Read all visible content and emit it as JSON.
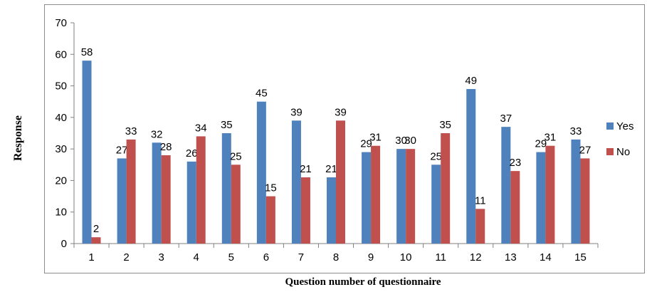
{
  "chart_data": {
    "type": "bar",
    "title": "",
    "xlabel": "Question number of questionnaire",
    "ylabel": "Response",
    "ylim": [
      0,
      70
    ],
    "yticks": [
      0,
      10,
      20,
      30,
      40,
      50,
      60,
      70
    ],
    "grid": false,
    "legend_position": "right",
    "categories": [
      "1",
      "2",
      "3",
      "4",
      "5",
      "6",
      "7",
      "8",
      "9",
      "10",
      "11",
      "12",
      "13",
      "14",
      "15"
    ],
    "series": [
      {
        "name": "Yes",
        "color": "#4F81BD",
        "values": [
          58,
          27,
          32,
          26,
          35,
          45,
          39,
          21,
          29,
          30,
          25,
          49,
          37,
          29,
          33
        ]
      },
      {
        "name": "No",
        "color": "#C0504D",
        "values": [
          2,
          33,
          28,
          34,
          25,
          15,
          21,
          39,
          31,
          30,
          35,
          11,
          23,
          31,
          27
        ]
      }
    ]
  }
}
